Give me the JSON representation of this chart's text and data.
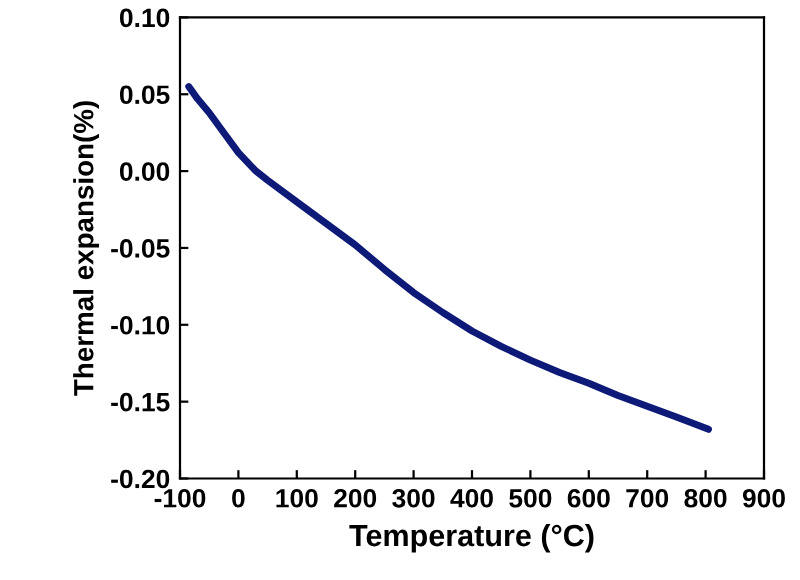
{
  "chart_data": {
    "type": "line",
    "xlabel": "Temperature (°C)",
    "ylabel": "Thermal expansion(%)",
    "x": [
      -85,
      -70,
      -50,
      -25,
      0,
      30,
      50,
      100,
      150,
      200,
      250,
      300,
      350,
      400,
      450,
      500,
      550,
      600,
      650,
      700,
      750,
      805
    ],
    "series": [
      {
        "color": "#0d1a78",
        "values": [
          0.055,
          0.047,
          0.038,
          0.025,
          0.012,
          0.0,
          -0.006,
          -0.02,
          -0.034,
          -0.048,
          -0.064,
          -0.079,
          -0.092,
          -0.104,
          -0.114,
          -0.123,
          -0.131,
          -0.138,
          -0.146,
          -0.153,
          -0.16,
          -0.168
        ]
      }
    ],
    "xlim": [
      -100,
      900
    ],
    "xticks": [
      -100,
      0,
      100,
      200,
      300,
      400,
      500,
      600,
      700,
      800,
      900
    ],
    "ylim": [
      -0.2,
      0.1
    ],
    "yticks": [
      {
        "value": -0.2,
        "label": "-0.20"
      },
      {
        "value": -0.15,
        "label": "-0.15"
      },
      {
        "value": -0.1,
        "label": "-0.10"
      },
      {
        "value": -0.05,
        "label": "-0.05"
      },
      {
        "value": 0,
        "label": "0.00"
      },
      {
        "value": 0.05,
        "label": "0.05"
      },
      {
        "value": 0.1,
        "label": "0.10"
      }
    ],
    "grid": false,
    "legend": false,
    "marker": "none",
    "line_style": "solid"
  }
}
